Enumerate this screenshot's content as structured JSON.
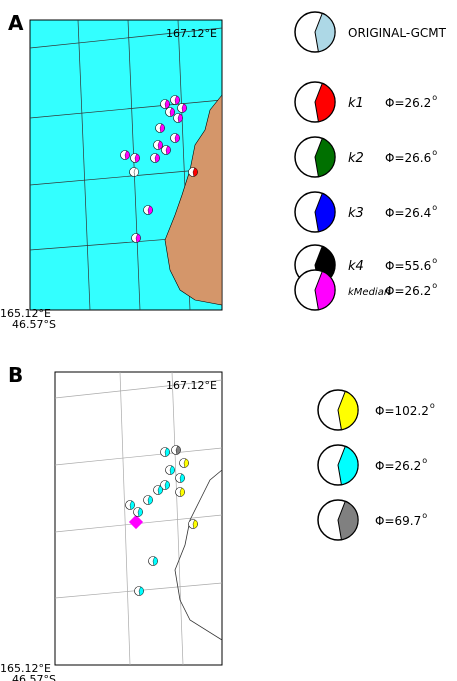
{
  "panel_a": {
    "label": "A",
    "top_right_coord": "167.12°E",
    "bottom_left_lon": "165.12°E",
    "bottom_left_lat": "46.57°S",
    "legend": [
      {
        "name": "ORIGINAL-GCMT",
        "color": "#add8e6"
      },
      {
        "name": "k1",
        "color": "#ff0000",
        "phi": "Φ=26.2",
        "sup": "o"
      },
      {
        "name": "k2",
        "color": "#007000",
        "phi": "Φ=26.6",
        "sup": "o"
      },
      {
        "name": "k3",
        "color": "#0000ff",
        "phi": "Φ=26.4",
        "sup": "o"
      },
      {
        "name": "k4",
        "color": "#000000",
        "phi": "Φ=55.6",
        "sup": "o"
      },
      {
        "name": "kMedian",
        "color": "#ff00ff",
        "phi": "Φ=26.2",
        "sup": "o"
      }
    ]
  },
  "panel_b": {
    "label": "B",
    "top_right_coord": "167.12°E",
    "bottom_left_lon": "165.12°E",
    "bottom_left_lat": "46.57°S",
    "legend": [
      {
        "color": "#ffff00",
        "phi": "Φ=102.2",
        "sup": "o"
      },
      {
        "color": "#00ffff",
        "phi": "Φ=26.2",
        "sup": "o"
      },
      {
        "color": "#808080",
        "phi": "Φ=69.7",
        "sup": "o"
      }
    ]
  }
}
